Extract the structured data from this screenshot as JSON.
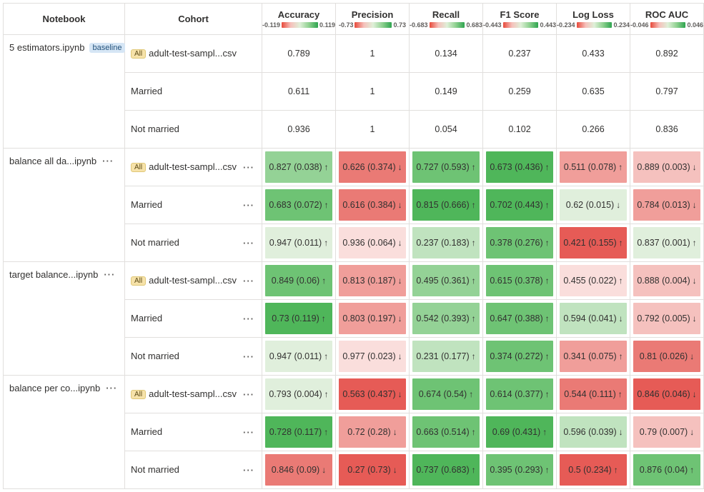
{
  "columns": {
    "notebook": "Notebook",
    "cohort": "Cohort",
    "metrics": [
      {
        "name": "Accuracy",
        "range": [
          -0.119,
          0.119
        ]
      },
      {
        "name": "Precision",
        "range": [
          -0.73,
          0.73
        ]
      },
      {
        "name": "Recall",
        "range": [
          -0.683,
          0.683
        ]
      },
      {
        "name": "F1 Score",
        "range": [
          -0.443,
          0.443
        ]
      },
      {
        "name": "Log Loss",
        "range": [
          -0.234,
          0.234
        ]
      },
      {
        "name": "ROC AUC",
        "range": [
          -0.046,
          0.046
        ]
      }
    ]
  },
  "badges": {
    "baseline": "baseline",
    "all": "All"
  },
  "colors": {
    "green_darkest": "#4fb65a",
    "green_dark": "#6ec374",
    "green_mid": "#94d296",
    "green_light": "#c0e3bf",
    "green_vlight": "#e0efdc",
    "red_darkest": "#e65b56",
    "red_dark": "#ea7a75",
    "red_mid": "#f09e9a",
    "red_light": "#f5c1be",
    "red_vlight": "#fadedc",
    "none": "transparent"
  },
  "notebooks": [
    {
      "name": "5 estimators.ipynb",
      "baseline": true,
      "dots": false,
      "cohorts": [
        {
          "label": "adult-test-sampl...csv",
          "all": true,
          "dots": false,
          "metrics": [
            {
              "text": "0.789",
              "bg": "none"
            },
            {
              "text": "1",
              "bg": "none"
            },
            {
              "text": "0.134",
              "bg": "none"
            },
            {
              "text": "0.237",
              "bg": "none"
            },
            {
              "text": "0.433",
              "bg": "none"
            },
            {
              "text": "0.892",
              "bg": "none"
            }
          ]
        },
        {
          "label": "Married",
          "all": false,
          "dots": false,
          "metrics": [
            {
              "text": "0.611",
              "bg": "none"
            },
            {
              "text": "1",
              "bg": "none"
            },
            {
              "text": "0.149",
              "bg": "none"
            },
            {
              "text": "0.259",
              "bg": "none"
            },
            {
              "text": "0.635",
              "bg": "none"
            },
            {
              "text": "0.797",
              "bg": "none"
            }
          ]
        },
        {
          "label": "Not married",
          "all": false,
          "dots": false,
          "metrics": [
            {
              "text": "0.936",
              "bg": "none"
            },
            {
              "text": "1",
              "bg": "none"
            },
            {
              "text": "0.054",
              "bg": "none"
            },
            {
              "text": "0.102",
              "bg": "none"
            },
            {
              "text": "0.266",
              "bg": "none"
            },
            {
              "text": "0.836",
              "bg": "none"
            }
          ]
        }
      ]
    },
    {
      "name": "balance all da...ipynb",
      "baseline": false,
      "dots": true,
      "cohorts": [
        {
          "label": "adult-test-sampl...csv",
          "all": true,
          "dots": true,
          "metrics": [
            {
              "text": "0.827 (0.038)",
              "arrow": "↑",
              "bg": "green_mid"
            },
            {
              "text": "0.626 (0.374)",
              "arrow": "↓",
              "bg": "red_dark"
            },
            {
              "text": "0.727 (0.593)",
              "arrow": "↑",
              "bg": "green_dark"
            },
            {
              "text": "0.673 (0.436)",
              "arrow": "↑",
              "bg": "green_darkest"
            },
            {
              "text": "0.511 (0.078)",
              "arrow": "↑",
              "bg": "red_mid"
            },
            {
              "text": "0.889 (0.003)",
              "arrow": "↓",
              "bg": "red_light"
            }
          ]
        },
        {
          "label": "Married",
          "all": false,
          "dots": true,
          "metrics": [
            {
              "text": "0.683 (0.072)",
              "arrow": "↑",
              "bg": "green_dark"
            },
            {
              "text": "0.616 (0.384)",
              "arrow": "↓",
              "bg": "red_dark"
            },
            {
              "text": "0.815 (0.666)",
              "arrow": "↑",
              "bg": "green_darkest"
            },
            {
              "text": "0.702 (0.443)",
              "arrow": "↑",
              "bg": "green_darkest"
            },
            {
              "text": "0.62 (0.015)",
              "arrow": "↓",
              "bg": "green_vlight"
            },
            {
              "text": "0.784 (0.013)",
              "arrow": "↓",
              "bg": "red_mid"
            }
          ]
        },
        {
          "label": "Not married",
          "all": false,
          "dots": true,
          "metrics": [
            {
              "text": "0.947 (0.011)",
              "arrow": "↑",
              "bg": "green_vlight"
            },
            {
              "text": "0.936 (0.064)",
              "arrow": "↓",
              "bg": "red_vlight"
            },
            {
              "text": "0.237 (0.183)",
              "arrow": "↑",
              "bg": "green_light"
            },
            {
              "text": "0.378 (0.276)",
              "arrow": "↑",
              "bg": "green_dark"
            },
            {
              "text": "0.421 (0.155)",
              "arrow": "↑",
              "bg": "red_darkest"
            },
            {
              "text": "0.837 (0.001)",
              "arrow": "↑",
              "bg": "green_vlight"
            }
          ]
        }
      ]
    },
    {
      "name": "target balance...ipynb",
      "baseline": false,
      "dots": true,
      "cohorts": [
        {
          "label": "adult-test-sampl...csv",
          "all": true,
          "dots": true,
          "metrics": [
            {
              "text": "0.849 (0.06)",
              "arrow": "↑",
              "bg": "green_dark"
            },
            {
              "text": "0.813 (0.187)",
              "arrow": "↓",
              "bg": "red_mid"
            },
            {
              "text": "0.495 (0.361)",
              "arrow": "↑",
              "bg": "green_mid"
            },
            {
              "text": "0.615 (0.378)",
              "arrow": "↑",
              "bg": "green_dark"
            },
            {
              "text": "0.455 (0.022)",
              "arrow": "↑",
              "bg": "red_vlight"
            },
            {
              "text": "0.888 (0.004)",
              "arrow": "↓",
              "bg": "red_light"
            }
          ]
        },
        {
          "label": "Married",
          "all": false,
          "dots": true,
          "metrics": [
            {
              "text": "0.73 (0.119)",
              "arrow": "↑",
              "bg": "green_darkest"
            },
            {
              "text": "0.803 (0.197)",
              "arrow": "↓",
              "bg": "red_mid"
            },
            {
              "text": "0.542 (0.393)",
              "arrow": "↑",
              "bg": "green_mid"
            },
            {
              "text": "0.647 (0.388)",
              "arrow": "↑",
              "bg": "green_dark"
            },
            {
              "text": "0.594 (0.041)",
              "arrow": "↓",
              "bg": "green_light"
            },
            {
              "text": "0.792 (0.005)",
              "arrow": "↓",
              "bg": "red_light"
            }
          ]
        },
        {
          "label": "Not married",
          "all": false,
          "dots": true,
          "metrics": [
            {
              "text": "0.947 (0.011)",
              "arrow": "↑",
              "bg": "green_vlight"
            },
            {
              "text": "0.977 (0.023)",
              "arrow": "↓",
              "bg": "red_vlight"
            },
            {
              "text": "0.231 (0.177)",
              "arrow": "↑",
              "bg": "green_light"
            },
            {
              "text": "0.374 (0.272)",
              "arrow": "↑",
              "bg": "green_dark"
            },
            {
              "text": "0.341 (0.075)",
              "arrow": "↑",
              "bg": "red_mid"
            },
            {
              "text": "0.81 (0.026)",
              "arrow": "↓",
              "bg": "red_dark"
            }
          ]
        }
      ]
    },
    {
      "name": "balance per co...ipynb",
      "baseline": false,
      "dots": true,
      "cohorts": [
        {
          "label": "adult-test-sampl...csv",
          "all": true,
          "dots": true,
          "metrics": [
            {
              "text": "0.793 (0.004)",
              "arrow": "↑",
              "bg": "green_vlight"
            },
            {
              "text": "0.563 (0.437)",
              "arrow": "↓",
              "bg": "red_darkest"
            },
            {
              "text": "0.674 (0.54)",
              "arrow": "↑",
              "bg": "green_dark"
            },
            {
              "text": "0.614 (0.377)",
              "arrow": "↑",
              "bg": "green_dark"
            },
            {
              "text": "0.544 (0.111)",
              "arrow": "↑",
              "bg": "red_dark"
            },
            {
              "text": "0.846 (0.046)",
              "arrow": "↓",
              "bg": "red_darkest"
            }
          ]
        },
        {
          "label": "Married",
          "all": false,
          "dots": true,
          "metrics": [
            {
              "text": "0.728 (0.117)",
              "arrow": "↑",
              "bg": "green_darkest"
            },
            {
              "text": "0.72 (0.28)",
              "arrow": "↓",
              "bg": "red_mid"
            },
            {
              "text": "0.663 (0.514)",
              "arrow": "↑",
              "bg": "green_dark"
            },
            {
              "text": "0.69 (0.431)",
              "arrow": "↑",
              "bg": "green_darkest"
            },
            {
              "text": "0.596 (0.039)",
              "arrow": "↓",
              "bg": "green_light"
            },
            {
              "text": "0.79 (0.007)",
              "arrow": "↓",
              "bg": "red_light"
            }
          ]
        },
        {
          "label": "Not married",
          "all": false,
          "dots": true,
          "metrics": [
            {
              "text": "0.846 (0.09)",
              "arrow": "↓",
              "bg": "red_dark"
            },
            {
              "text": "0.27 (0.73)",
              "arrow": "↓",
              "bg": "red_darkest"
            },
            {
              "text": "0.737 (0.683)",
              "arrow": "↑",
              "bg": "green_darkest"
            },
            {
              "text": "0.395 (0.293)",
              "arrow": "↑",
              "bg": "green_dark"
            },
            {
              "text": "0.5 (0.234)",
              "arrow": "↑",
              "bg": "red_darkest"
            },
            {
              "text": "0.876 (0.04)",
              "arrow": "↑",
              "bg": "green_dark"
            }
          ]
        }
      ]
    }
  ]
}
